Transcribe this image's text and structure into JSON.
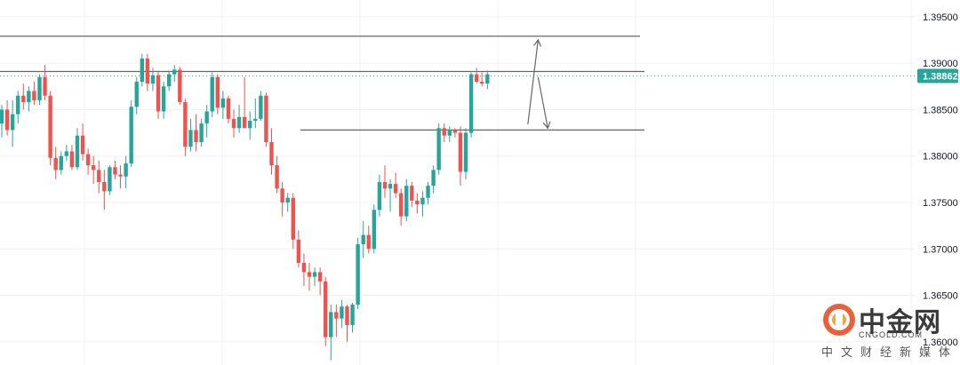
{
  "chart_data": {
    "type": "candlestick",
    "instrument_hint": "",
    "ylim": [
      1.3575,
      1.3968
    ],
    "y_ticks": [
      "1.39500",
      "1.39000",
      "1.38500",
      "1.38000",
      "1.37500",
      "1.37000",
      "1.36500",
      "1.36000"
    ],
    "y_tick_values": [
      1.395,
      1.39,
      1.385,
      1.38,
      1.375,
      1.37,
      1.365,
      1.36
    ],
    "current_price_label": "1.38862",
    "current_price": 1.38862,
    "horizontal_levels": [
      1.3929,
      1.3891,
      1.3828
    ],
    "grid": true,
    "colors": {
      "up": "#26a69a",
      "down": "#ef5350",
      "line": "#666666",
      "grid": "#eef0f3",
      "badge": "#26a69a"
    },
    "candles": [
      [
        1.3835,
        1.3855,
        1.382,
        1.385
      ],
      [
        1.385,
        1.386,
        1.3822,
        1.3828
      ],
      [
        1.3828,
        1.386,
        1.381,
        1.3845
      ],
      [
        1.3845,
        1.387,
        1.3835,
        1.3865
      ],
      [
        1.3865,
        1.3878,
        1.385,
        1.3858
      ],
      [
        1.3858,
        1.3875,
        1.3848,
        1.387
      ],
      [
        1.387,
        1.388,
        1.3855,
        1.386
      ],
      [
        1.386,
        1.3888,
        1.3855,
        1.3885
      ],
      [
        1.3885,
        1.3898,
        1.386,
        1.3865
      ],
      [
        1.3865,
        1.387,
        1.379,
        1.3798
      ],
      [
        1.3798,
        1.381,
        1.3775,
        1.3785
      ],
      [
        1.3785,
        1.3805,
        1.378,
        1.38
      ],
      [
        1.38,
        1.3812,
        1.3795,
        1.3805
      ],
      [
        1.3805,
        1.3812,
        1.3785,
        1.3788
      ],
      [
        1.3788,
        1.383,
        1.3785,
        1.3822
      ],
      [
        1.3822,
        1.3835,
        1.3795,
        1.3802
      ],
      [
        1.3802,
        1.3808,
        1.378,
        1.379
      ],
      [
        1.379,
        1.38,
        1.377,
        1.3785
      ],
      [
        1.3785,
        1.3795,
        1.376,
        1.3772
      ],
      [
        1.3772,
        1.3785,
        1.3742,
        1.3762
      ],
      [
        1.3762,
        1.379,
        1.3758,
        1.3788
      ],
      [
        1.3788,
        1.3795,
        1.3775,
        1.378
      ],
      [
        1.378,
        1.379,
        1.3765,
        1.3778
      ],
      [
        1.3778,
        1.38,
        1.3765,
        1.3792
      ],
      [
        1.3792,
        1.386,
        1.3788,
        1.3853
      ],
      [
        1.3853,
        1.3885,
        1.3845,
        1.388
      ],
      [
        1.388,
        1.391,
        1.3875,
        1.3905
      ],
      [
        1.3905,
        1.391,
        1.387,
        1.3878
      ],
      [
        1.3878,
        1.3895,
        1.387,
        1.3887
      ],
      [
        1.3887,
        1.3892,
        1.384,
        1.3848
      ],
      [
        1.3848,
        1.388,
        1.384,
        1.3875
      ],
      [
        1.3875,
        1.3892,
        1.387,
        1.3888
      ],
      [
        1.3888,
        1.3898,
        1.388,
        1.3893
      ],
      [
        1.3893,
        1.3896,
        1.3855,
        1.3858
      ],
      [
        1.3858,
        1.3862,
        1.38,
        1.381
      ],
      [
        1.381,
        1.384,
        1.3805,
        1.3828
      ],
      [
        1.3828,
        1.3845,
        1.3805,
        1.3815
      ],
      [
        1.3815,
        1.384,
        1.381,
        1.3835
      ],
      [
        1.3835,
        1.3855,
        1.382,
        1.3848
      ],
      [
        1.3848,
        1.389,
        1.3842,
        1.3885
      ],
      [
        1.3885,
        1.3888,
        1.3845,
        1.3852
      ],
      [
        1.3852,
        1.387,
        1.384,
        1.3862
      ],
      [
        1.3862,
        1.3865,
        1.3835,
        1.384
      ],
      [
        1.384,
        1.385,
        1.382,
        1.383
      ],
      [
        1.383,
        1.3855,
        1.3825,
        1.3842
      ],
      [
        1.3842,
        1.3885,
        1.383,
        1.383
      ],
      [
        1.383,
        1.3848,
        1.3818,
        1.3838
      ],
      [
        1.3838,
        1.3862,
        1.383,
        1.384
      ],
      [
        1.384,
        1.387,
        1.3838,
        1.3865
      ],
      [
        1.3865,
        1.3868,
        1.381,
        1.3815
      ],
      [
        1.3815,
        1.383,
        1.378,
        1.379
      ],
      [
        1.379,
        1.38,
        1.376,
        1.3765
      ],
      [
        1.3765,
        1.3772,
        1.3735,
        1.375
      ],
      [
        1.375,
        1.376,
        1.374,
        1.3755
      ],
      [
        1.3755,
        1.376,
        1.37,
        1.371
      ],
      [
        1.371,
        1.372,
        1.368,
        1.3685
      ],
      [
        1.3685,
        1.3695,
        1.366,
        1.3675
      ],
      [
        1.3675,
        1.3685,
        1.3655,
        1.367
      ],
      [
        1.367,
        1.368,
        1.366,
        1.3675
      ],
      [
        1.3675,
        1.368,
        1.365,
        1.3665
      ],
      [
        1.3665,
        1.367,
        1.3595,
        1.3605
      ],
      [
        1.3605,
        1.364,
        1.358,
        1.3632
      ],
      [
        1.3632,
        1.364,
        1.3605,
        1.3625
      ],
      [
        1.3625,
        1.3645,
        1.3615,
        1.3638
      ],
      [
        1.3638,
        1.364,
        1.36,
        1.3618
      ],
      [
        1.3618,
        1.3642,
        1.361,
        1.364
      ],
      [
        1.364,
        1.3712,
        1.3635,
        1.3705
      ],
      [
        1.3705,
        1.373,
        1.369,
        1.3715
      ],
      [
        1.3715,
        1.3725,
        1.3695,
        1.37
      ],
      [
        1.37,
        1.3748,
        1.3695,
        1.3742
      ],
      [
        1.3742,
        1.378,
        1.3735,
        1.3772
      ],
      [
        1.3772,
        1.379,
        1.3755,
        1.3765
      ],
      [
        1.3765,
        1.3775,
        1.374,
        1.377
      ],
      [
        1.377,
        1.3782,
        1.3755,
        1.376
      ],
      [
        1.376,
        1.3765,
        1.3725,
        1.3735
      ],
      [
        1.3735,
        1.3775,
        1.373,
        1.3768
      ],
      [
        1.3768,
        1.3772,
        1.3745,
        1.3752
      ],
      [
        1.3752,
        1.376,
        1.3738,
        1.3748
      ],
      [
        1.3748,
        1.3762,
        1.3735,
        1.3755
      ],
      [
        1.3755,
        1.3772,
        1.3748,
        1.3768
      ],
      [
        1.3768,
        1.379,
        1.376,
        1.3785
      ],
      [
        1.3785,
        1.3835,
        1.378,
        1.383
      ],
      [
        1.383,
        1.3835,
        1.3815,
        1.3822
      ],
      [
        1.3822,
        1.3832,
        1.3815,
        1.3828
      ],
      [
        1.3828,
        1.383,
        1.382,
        1.3825
      ],
      [
        1.3825,
        1.3832,
        1.3768,
        1.3783
      ],
      [
        1.3783,
        1.383,
        1.3775,
        1.3825
      ],
      [
        1.3825,
        1.389,
        1.382,
        1.3888
      ],
      [
        1.3888,
        1.3895,
        1.3878,
        1.388
      ],
      [
        1.388,
        1.389,
        1.3875,
        1.3878
      ],
      [
        1.3878,
        1.3892,
        1.3872,
        1.3888
      ]
    ],
    "annotations": [
      {
        "type": "arrow",
        "from": [
          97.5,
          1.3834
        ],
        "to": [
          99.4,
          1.3925
        ]
      },
      {
        "type": "arrow",
        "from": [
          99.4,
          1.3885
        ],
        "to": [
          101.2,
          1.383
        ]
      }
    ]
  },
  "watermark": {
    "title": "中金网",
    "subtitle": "CNGOLD.COM",
    "tagline": "中文财经新媒体"
  }
}
